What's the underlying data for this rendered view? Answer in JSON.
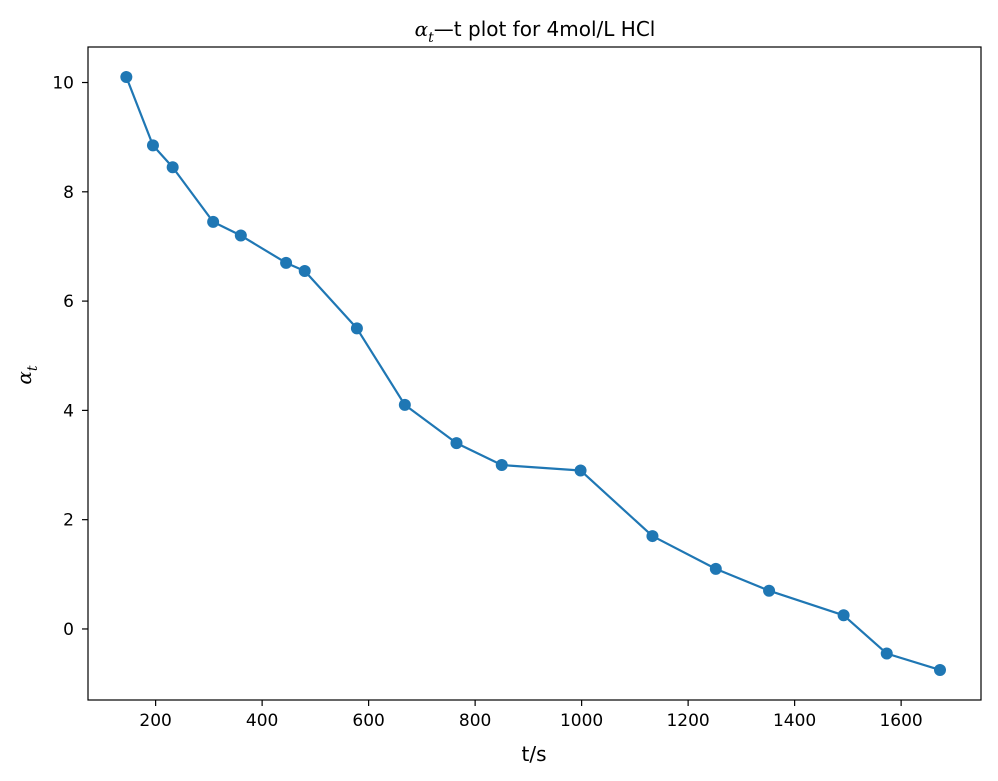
{
  "chart_data": {
    "type": "line",
    "markers": true,
    "title": {
      "symbol": "α",
      "subscript": "t",
      "rest": "—t plot for 4mol/L HCl"
    },
    "xlabel": "t/s",
    "ylabel": {
      "symbol": "α",
      "subscript": "t"
    },
    "xlim": [
      73,
      1750
    ],
    "ylim": [
      -1.3,
      10.65
    ],
    "xticks": [
      200,
      400,
      600,
      800,
      1000,
      1200,
      1400,
      1600
    ],
    "yticks": [
      0,
      2,
      4,
      6,
      8,
      10
    ],
    "grid": false,
    "series": [
      {
        "color": "#1f77b4",
        "x": [
          145,
          195,
          232,
          308,
          360,
          445,
          480,
          578,
          668,
          765,
          850,
          998,
          1133,
          1252,
          1352,
          1492,
          1573,
          1673
        ],
        "y": [
          10.1,
          8.85,
          8.45,
          7.45,
          7.2,
          6.7,
          6.55,
          5.5,
          4.1,
          3.4,
          3.0,
          2.9,
          1.7,
          1.1,
          0.7,
          0.25,
          -0.45,
          -0.75
        ]
      }
    ]
  }
}
